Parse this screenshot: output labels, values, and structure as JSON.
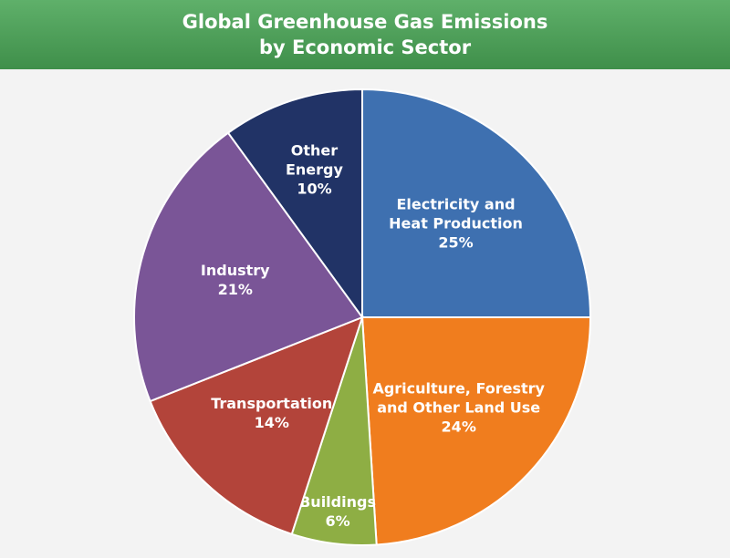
{
  "title": {
    "line1": "Global Greenhouse Gas Emissions",
    "line2": "by Economic Sector"
  },
  "chart_data": {
    "type": "pie",
    "title": "Global Greenhouse Gas Emissions by Economic Sector",
    "slices": [
      {
        "label_lines": [
          "Electricity and",
          "Heat Production"
        ],
        "value": 25,
        "display": "25%",
        "color": "#3e70b0"
      },
      {
        "label_lines": [
          "Agriculture, Forestry",
          "and Other Land Use"
        ],
        "value": 24,
        "display": "24%",
        "color": "#f07d1e"
      },
      {
        "label_lines": [
          "Buildings"
        ],
        "value": 6,
        "display": "6%",
        "color": "#8eae44"
      },
      {
        "label_lines": [
          "Transportation"
        ],
        "value": 14,
        "display": "14%",
        "color": "#b3443a"
      },
      {
        "label_lines": [
          "Industry"
        ],
        "value": 21,
        "display": "21%",
        "color": "#7a5597"
      },
      {
        "label_lines": [
          "Other",
          "Energy"
        ],
        "value": 10,
        "display": "10%",
        "color": "#213366"
      }
    ]
  }
}
